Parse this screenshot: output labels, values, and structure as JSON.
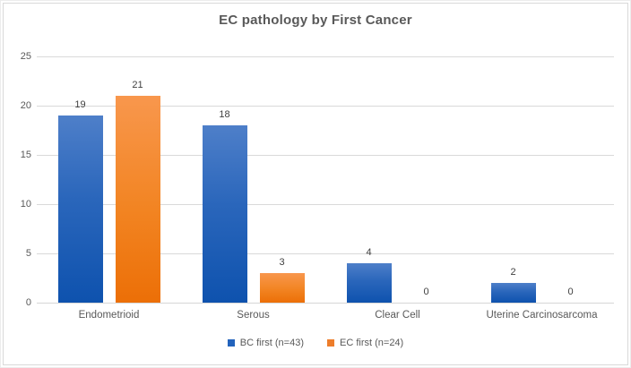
{
  "colors": {
    "bc_top": "#4E7FC9",
    "bc_bottom": "#0E52AE",
    "ec_top": "#F8974D",
    "ec_bottom": "#EC6F07",
    "bc_legend": "#2263BC",
    "ec_legend": "#ED7D2B",
    "gridline": "#D9D9D9",
    "axis_text": "#595959",
    "value_label_text": "#404040"
  },
  "chart_data": {
    "type": "bar",
    "title": "EC pathology by First Cancer",
    "categories": [
      "Endometrioid",
      "Serous",
      "Clear Cell",
      "Uterine Carcinosarcoma"
    ],
    "series": [
      {
        "name": "BC first (n=43)",
        "color_key": "bc",
        "values": [
          19,
          18,
          4,
          2
        ]
      },
      {
        "name": "EC first (n=24)",
        "color_key": "ec",
        "values": [
          21,
          3,
          0,
          0
        ]
      }
    ],
    "ylim": [
      0,
      25
    ],
    "ytick_step": 5,
    "yticks": [
      "0",
      "5",
      "10",
      "15",
      "20",
      "25"
    ],
    "grid": true,
    "data_labels": true,
    "legend_position": "bottom",
    "xlabel": "",
    "ylabel": ""
  }
}
